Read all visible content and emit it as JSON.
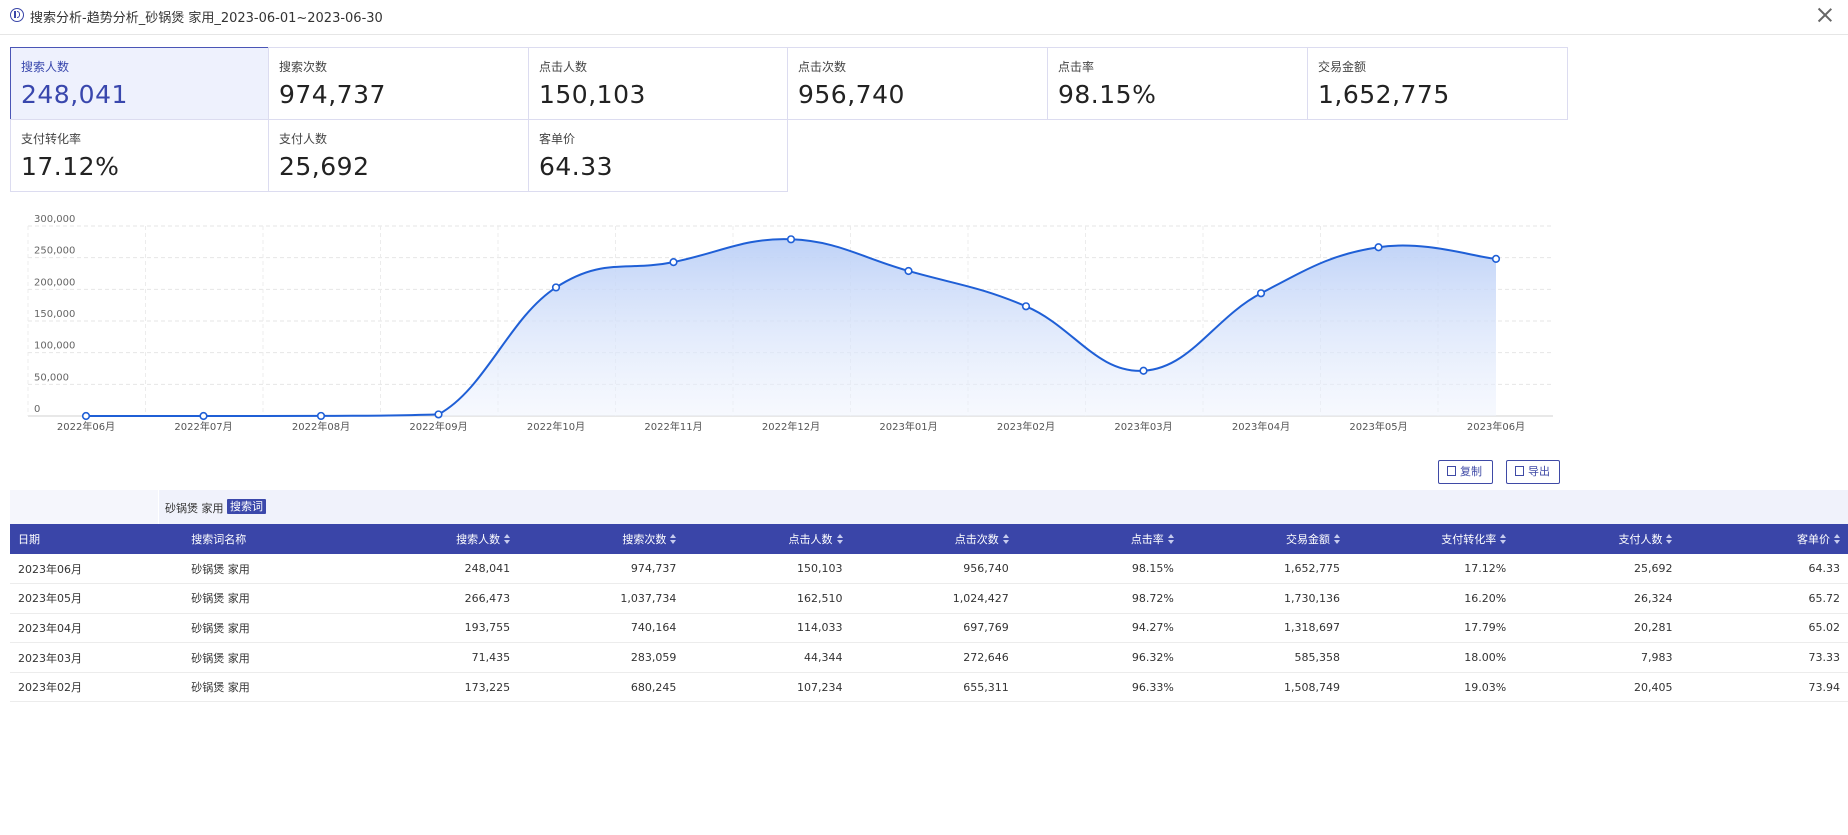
{
  "window": {
    "title": "搜索分析-趋势分析_砂锅煲 家用_2023-06-01~2023-06-30"
  },
  "metrics": [
    {
      "label": "搜索人数",
      "value": "248,041",
      "active": true
    },
    {
      "label": "搜索次数",
      "value": "974,737"
    },
    {
      "label": "点击人数",
      "value": "150,103"
    },
    {
      "label": "点击次数",
      "value": "956,740"
    },
    {
      "label": "点击率",
      "value": "98.15%"
    },
    {
      "label": "交易金额",
      "value": "1,652,775"
    },
    {
      "label": "支付转化率",
      "value": "17.12%"
    },
    {
      "label": "支付人数",
      "value": "25,692"
    },
    {
      "label": "客单价",
      "value": "64.33"
    }
  ],
  "chart_data": {
    "type": "area",
    "categories": [
      "2022年06月",
      "2022年07月",
      "2022年08月",
      "2022年09月",
      "2022年10月",
      "2022年11月",
      "2022年12月",
      "2023年01月",
      "2023年02月",
      "2023年03月",
      "2023年04月",
      "2023年05月",
      "2023年06月"
    ],
    "series": [
      {
        "values": [
          0,
          0,
          100,
          2500,
          203000,
          243000,
          279000,
          229000,
          173225,
          71435,
          193755,
          266473,
          248041
        ]
      }
    ],
    "ylim": [
      0,
      300000
    ],
    "yticks": [
      "0",
      "50,000",
      "100,000",
      "150,000",
      "200,000",
      "250,000",
      "300,000"
    ],
    "grid": true,
    "color": "#1f5fd6"
  },
  "actions": {
    "copy": "复制",
    "export": "导出"
  },
  "keyword": {
    "text": "砂锅煲 家用",
    "tag": "搜索词"
  },
  "table": {
    "columns": [
      "日期",
      "搜索词名称",
      "搜索人数",
      "搜索次数",
      "点击人数",
      "点击次数",
      "点击率",
      "交易金额",
      "支付转化率",
      "支付人数",
      "客单价"
    ],
    "rows": [
      [
        "2023年06月",
        "砂锅煲 家用",
        "248,041",
        "974,737",
        "150,103",
        "956,740",
        "98.15%",
        "1,652,775",
        "17.12%",
        "25,692",
        "64.33"
      ],
      [
        "2023年05月",
        "砂锅煲 家用",
        "266,473",
        "1,037,734",
        "162,510",
        "1,024,427",
        "98.72%",
        "1,730,136",
        "16.20%",
        "26,324",
        "65.72"
      ],
      [
        "2023年04月",
        "砂锅煲 家用",
        "193,755",
        "740,164",
        "114,033",
        "697,769",
        "94.27%",
        "1,318,697",
        "17.79%",
        "20,281",
        "65.02"
      ],
      [
        "2023年03月",
        "砂锅煲 家用",
        "71,435",
        "283,059",
        "44,344",
        "272,646",
        "96.32%",
        "585,358",
        "18.00%",
        "7,983",
        "73.33"
      ],
      [
        "2023年02月",
        "砂锅煲 家用",
        "173,225",
        "680,245",
        "107,234",
        "655,311",
        "96.33%",
        "1,508,749",
        "19.03%",
        "20,405",
        "73.94"
      ]
    ]
  }
}
